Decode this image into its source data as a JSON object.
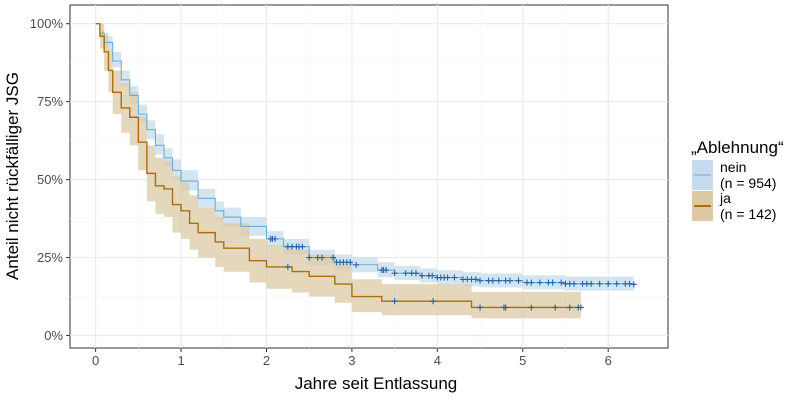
{
  "chart_data": {
    "type": "line",
    "subtype": "kaplan-meier step curves with confidence bands",
    "xlabel": "Jahre seit Entlassung",
    "ylabel": "Anteil nicht rückfälliger JSG",
    "xlim": [
      -0.3,
      6.7
    ],
    "ylim": [
      -4,
      106
    ],
    "xticks": [
      0,
      1,
      2,
      3,
      4,
      5,
      6
    ],
    "yticks": [
      0,
      25,
      50,
      75,
      100
    ],
    "ytick_labels": [
      "0%",
      "25%",
      "50%",
      "75%",
      "100%"
    ],
    "grid": true,
    "legend": {
      "title": "„Ablehnung“",
      "placement": "right"
    },
    "series": [
      {
        "name": "nein",
        "legend_line2": "(n = 954)",
        "color": "#6aaed6",
        "band_color": "#c6dcee",
        "t": [
          0,
          0.05,
          0.1,
          0.2,
          0.3,
          0.4,
          0.5,
          0.6,
          0.7,
          0.8,
          0.9,
          1.0,
          1.2,
          1.4,
          1.5,
          1.7,
          2.0,
          2.2,
          2.5,
          2.8,
          3.0,
          3.3,
          3.5,
          3.8,
          4.0,
          4.3,
          4.5,
          5.0,
          5.5,
          6.3
        ],
        "surv": [
          100,
          97,
          94,
          88,
          82,
          77,
          71,
          66,
          61,
          57,
          53,
          49.5,
          44,
          40,
          38,
          35,
          31,
          28.5,
          25,
          23.5,
          22.7,
          21,
          20,
          19.2,
          18.6,
          18,
          17.6,
          17,
          16.6,
          16.4
        ],
        "lower": [
          100,
          96,
          92,
          86,
          80,
          74.5,
          68.5,
          63,
          58,
          54,
          50,
          46.5,
          41,
          37,
          35,
          32,
          28.5,
          26,
          22.5,
          21,
          20.3,
          18.7,
          17.8,
          17,
          16.4,
          15.8,
          15.4,
          14.8,
          14.4,
          14.2
        ],
        "upper": [
          100,
          98,
          96,
          91,
          85,
          80,
          74,
          69,
          64.5,
          60,
          56.5,
          53,
          47,
          43,
          41,
          38,
          33.5,
          31,
          27.5,
          26,
          25.2,
          23.5,
          22.3,
          21.5,
          20.9,
          20.3,
          19.9,
          19.3,
          18.9,
          18.7
        ],
        "censored": [
          2.05,
          2.07,
          2.1,
          2.25,
          2.3,
          2.35,
          2.38,
          2.42,
          2.5,
          2.6,
          2.65,
          2.78,
          2.82,
          2.86,
          2.9,
          2.94,
          2.98,
          3.05,
          3.35,
          3.37,
          3.4,
          3.5,
          3.63,
          3.7,
          3.75,
          3.82,
          3.9,
          3.94,
          4.0,
          4.04,
          4.08,
          4.12,
          4.2,
          4.3,
          4.35,
          4.4,
          4.45,
          4.5,
          4.6,
          4.65,
          4.72,
          4.8,
          4.85,
          4.95,
          5.05,
          5.1,
          5.2,
          5.3,
          5.35,
          5.45,
          5.5,
          5.55,
          5.6,
          5.7,
          5.75,
          5.8,
          5.9,
          6.0,
          6.1,
          6.2,
          6.25,
          6.3
        ]
      },
      {
        "name": "ja",
        "legend_line2": "(n = 142)",
        "color": "#a8700f",
        "band_color": "#dcc9a4",
        "t": [
          0,
          0.05,
          0.1,
          0.15,
          0.2,
          0.3,
          0.4,
          0.5,
          0.6,
          0.7,
          0.8,
          0.9,
          1.0,
          1.1,
          1.2,
          1.4,
          1.5,
          1.8,
          2.0,
          2.3,
          2.5,
          2.8,
          3.0,
          3.35,
          4.4,
          5.68
        ],
        "surv": [
          100,
          96,
          91,
          85,
          78,
          73,
          70,
          62,
          52,
          48,
          47,
          42,
          40,
          36,
          33,
          30,
          28,
          24,
          22,
          20.5,
          19,
          16.5,
          12.5,
          11,
          9,
          9
        ],
        "lower": [
          100,
          92,
          85,
          78,
          71,
          65,
          61,
          53,
          43,
          39,
          38,
          33,
          31,
          27.5,
          25,
          22,
          20.5,
          17,
          15,
          13.8,
          12.5,
          10.5,
          7.5,
          6.5,
          5.5,
          5.5
        ],
        "upper": [
          100,
          100,
          97,
          92,
          85,
          81,
          78,
          70,
          61,
          57,
          56,
          51,
          49,
          45,
          41,
          38,
          36,
          31,
          29,
          27.5,
          26,
          23,
          18,
          16.5,
          14,
          14
        ],
        "censored": [
          2.25,
          3.5,
          3.95,
          4.5,
          4.78,
          4.8,
          5.1,
          5.38,
          5.55,
          5.65,
          5.68
        ]
      }
    ],
    "censor_color": "#2363a8"
  }
}
